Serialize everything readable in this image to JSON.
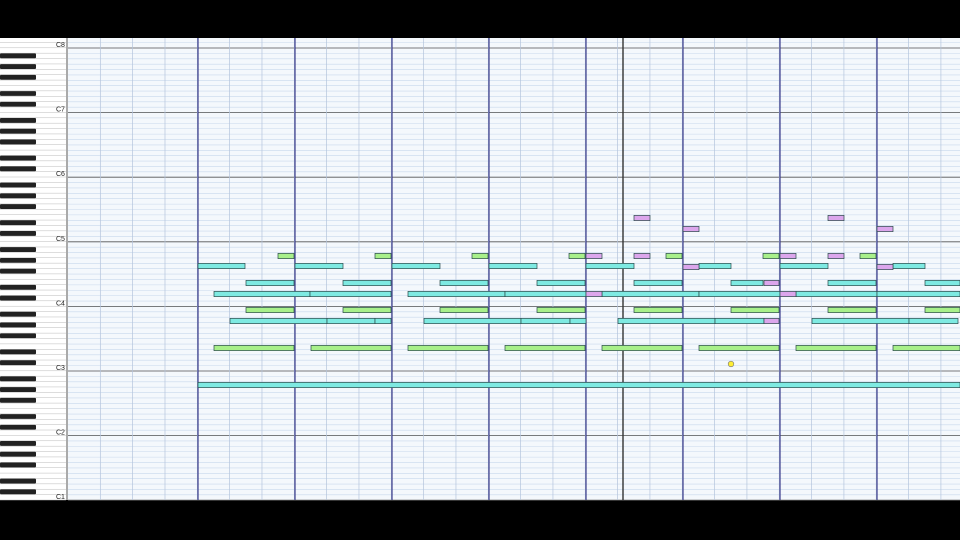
{
  "keyboard": {
    "octave_labels": [
      "C8",
      "C7",
      "C6",
      "C5",
      "C4",
      "C3",
      "C2",
      "C1"
    ]
  }
}
